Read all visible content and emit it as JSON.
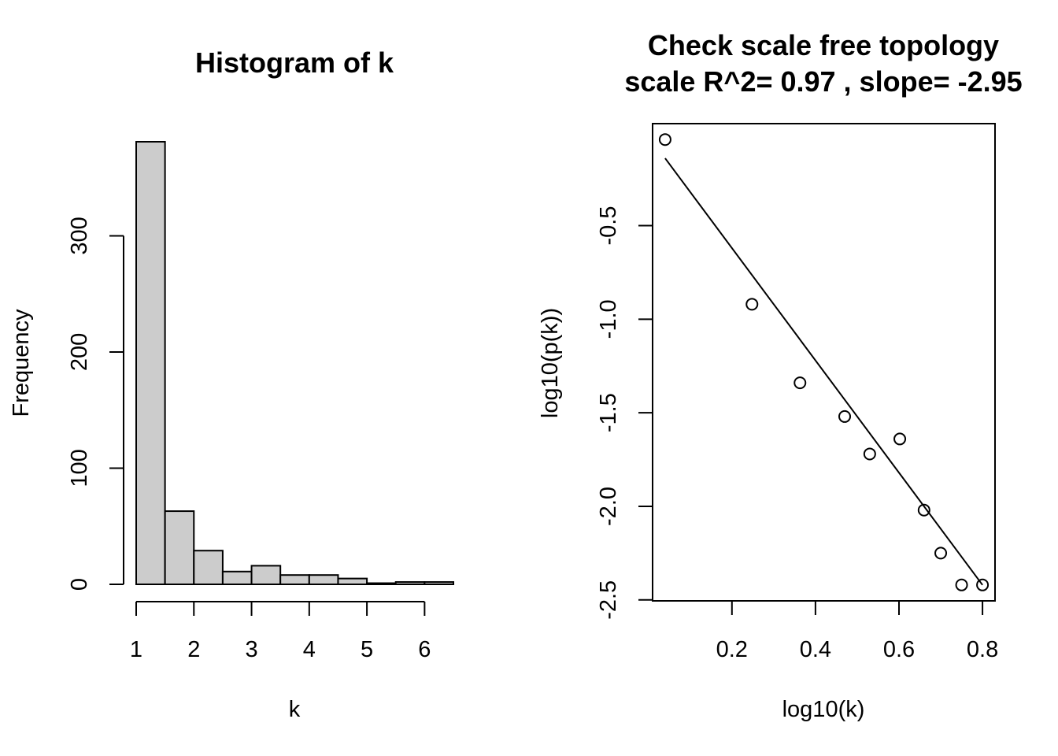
{
  "chart_data": [
    {
      "type": "bar",
      "title": "Histogram of k",
      "xlabel": "k",
      "ylabel": "Frequency",
      "bins": [
        {
          "from": 1.0,
          "to": 1.5,
          "count": 381
        },
        {
          "from": 1.5,
          "to": 2.0,
          "count": 63
        },
        {
          "from": 2.0,
          "to": 2.5,
          "count": 29
        },
        {
          "from": 2.5,
          "to": 3.0,
          "count": 11
        },
        {
          "from": 3.0,
          "to": 3.5,
          "count": 16
        },
        {
          "from": 3.5,
          "to": 4.0,
          "count": 8
        },
        {
          "from": 4.0,
          "to": 4.5,
          "count": 8
        },
        {
          "from": 4.5,
          "to": 5.0,
          "count": 5
        },
        {
          "from": 5.0,
          "to": 5.5,
          "count": 1
        },
        {
          "from": 5.5,
          "to": 6.0,
          "count": 2
        },
        {
          "from": 6.0,
          "to": 6.5,
          "count": 2
        }
      ],
      "x_ticks": [
        1,
        2,
        3,
        4,
        5,
        6
      ],
      "y_ticks": [
        0,
        100,
        200,
        300
      ],
      "xlim": [
        1,
        6.5
      ],
      "ylim": [
        0,
        381
      ],
      "bar_fill": "#cccccc",
      "grid": false
    },
    {
      "type": "scatter",
      "title": [
        "Check scale free topology",
        "scale R^2= 0.97 , slope= -2.95"
      ],
      "xlabel": "log10(k)",
      "ylabel": "log10(p(k))",
      "points": [
        {
          "x": 0.04,
          "y": -0.04
        },
        {
          "x": 0.248,
          "y": -0.92
        },
        {
          "x": 0.363,
          "y": -1.34
        },
        {
          "x": 0.47,
          "y": -1.52
        },
        {
          "x": 0.53,
          "y": -1.72
        },
        {
          "x": 0.602,
          "y": -1.64
        },
        {
          "x": 0.66,
          "y": -2.02
        },
        {
          "x": 0.7,
          "y": -2.25
        },
        {
          "x": 0.75,
          "y": -2.42
        },
        {
          "x": 0.8,
          "y": -2.42
        }
      ],
      "fit_line": {
        "x": [
          0.04,
          0.8
        ],
        "y": [
          -0.14,
          -2.42
        ]
      },
      "x_ticks": [
        "0.2",
        "0.4",
        "0.6",
        "0.8"
      ],
      "y_ticks": [
        "-0.5",
        "-1.0",
        "-1.5",
        "-2.0",
        "-2.5"
      ],
      "xlim": [
        0.01,
        0.83
      ],
      "ylim": [
        -2.505,
        0.045
      ],
      "grid": false
    }
  ]
}
